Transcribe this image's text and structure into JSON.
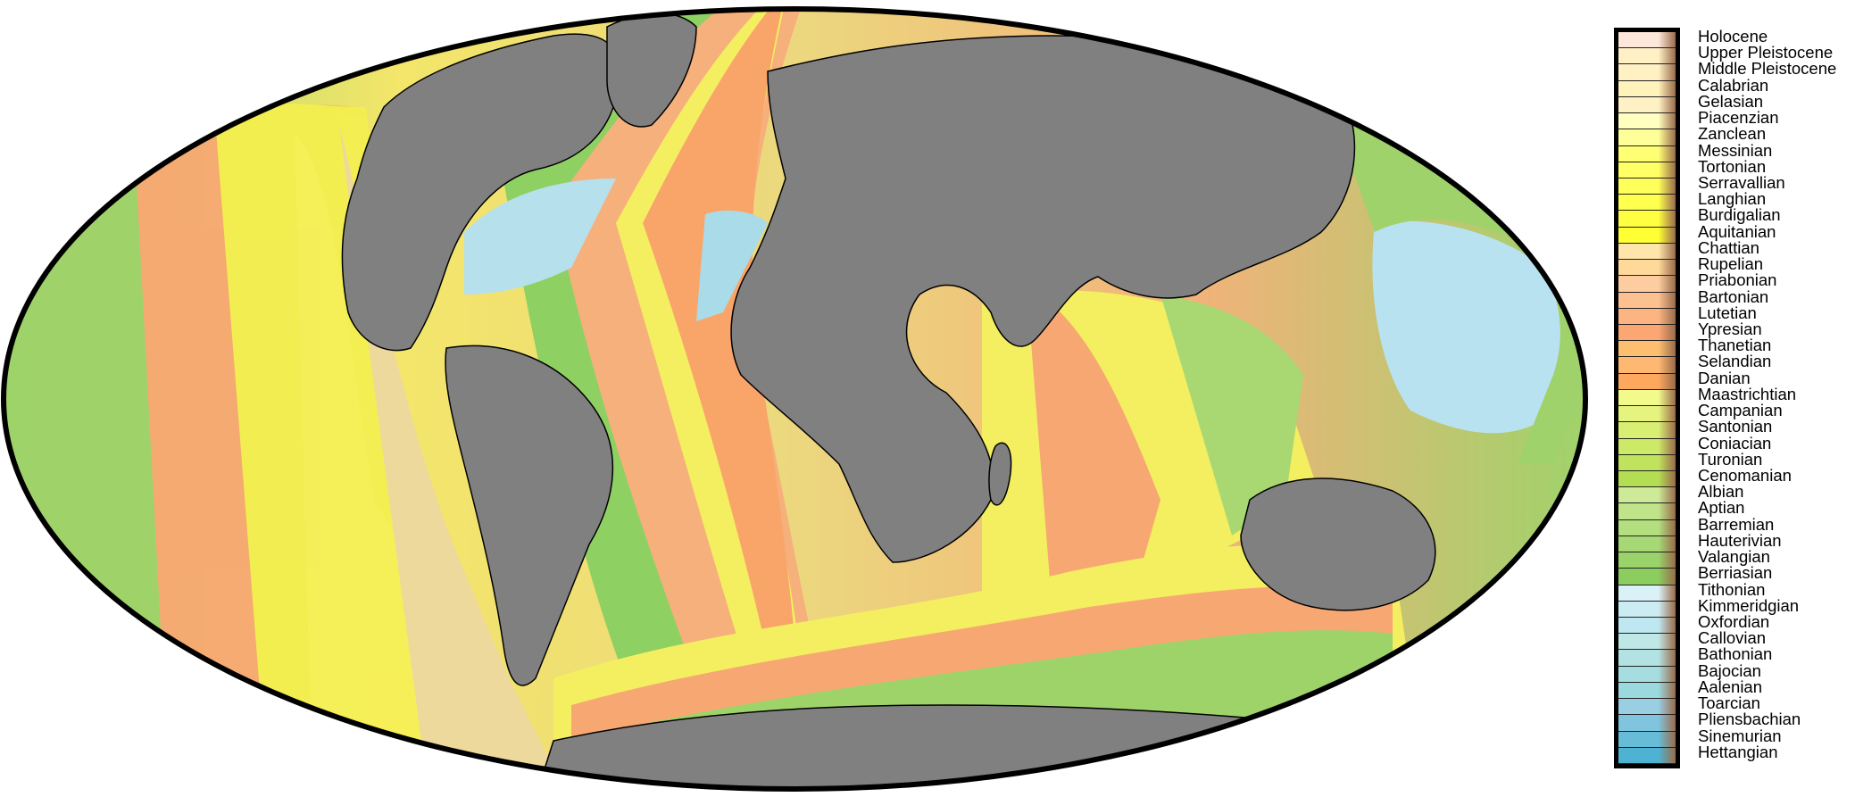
{
  "map": {
    "projection": "mollweide",
    "ocean_outline_color": "#000000",
    "land_color": "#808080",
    "coastline_color": "#000000"
  },
  "legend": {
    "stages": [
      {
        "name": "Holocene",
        "color": "#fde6da"
      },
      {
        "name": "Upper Pleistocene",
        "color": "#fff0c6"
      },
      {
        "name": "Middle Pleistocene",
        "color": "#fff1c4"
      },
      {
        "name": "Calabrian",
        "color": "#fff2ba"
      },
      {
        "name": "Gelasian",
        "color": "#fff1c6"
      },
      {
        "name": "Piacenzian",
        "color": "#ffffbf"
      },
      {
        "name": "Zanclean",
        "color": "#ffff99"
      },
      {
        "name": "Messinian",
        "color": "#ffff73"
      },
      {
        "name": "Tortonian",
        "color": "#ffff66"
      },
      {
        "name": "Serravallian",
        "color": "#ffff59"
      },
      {
        "name": "Langhian",
        "color": "#ffff4d"
      },
      {
        "name": "Burdigalian",
        "color": "#ffff41"
      },
      {
        "name": "Aquitanian",
        "color": "#ffff33"
      },
      {
        "name": "Chattian",
        "color": "#fee6aa"
      },
      {
        "name": "Rupelian",
        "color": "#fed99a"
      },
      {
        "name": "Priabonian",
        "color": "#fdcda1"
      },
      {
        "name": "Bartonian",
        "color": "#fdc091"
      },
      {
        "name": "Lutetian",
        "color": "#fcb482"
      },
      {
        "name": "Ypresian",
        "color": "#fca773"
      },
      {
        "name": "Thanetian",
        "color": "#fdbf6f"
      },
      {
        "name": "Selandian",
        "color": "#feb871"
      },
      {
        "name": "Danian",
        "color": "#fda75f"
      },
      {
        "name": "Maastrichtian",
        "color": "#f2fa8c"
      },
      {
        "name": "Campanian",
        "color": "#e6f47f"
      },
      {
        "name": "Santonian",
        "color": "#d9ef74"
      },
      {
        "name": "Coniacian",
        "color": "#cce968"
      },
      {
        "name": "Turonian",
        "color": "#bfe35d"
      },
      {
        "name": "Cenomanian",
        "color": "#b3de53"
      },
      {
        "name": "Albian",
        "color": "#ccea97"
      },
      {
        "name": "Aptian",
        "color": "#bfe48a"
      },
      {
        "name": "Barremian",
        "color": "#b3df7f"
      },
      {
        "name": "Hauterivian",
        "color": "#a6d975"
      },
      {
        "name": "Valangian",
        "color": "#99d36a"
      },
      {
        "name": "Berriasian",
        "color": "#8ccd60"
      },
      {
        "name": "Tithonian",
        "color": "#d9f1f7"
      },
      {
        "name": "Kimmeridgian",
        "color": "#ccecf4"
      },
      {
        "name": "Oxfordian",
        "color": "#bfe7f1"
      },
      {
        "name": "Callovian",
        "color": "#bfe7e5"
      },
      {
        "name": "Bathonian",
        "color": "#b3e2e3"
      },
      {
        "name": "Bajocian",
        "color": "#a6dde0"
      },
      {
        "name": "Aalenian",
        "color": "#9ad9dd"
      },
      {
        "name": "Toarcian",
        "color": "#99cee3"
      },
      {
        "name": "Pliensbachian",
        "color": "#80c5dd"
      },
      {
        "name": "Sinemurian",
        "color": "#67bcd8"
      },
      {
        "name": "Hettangian",
        "color": "#4eb3d3"
      }
    ]
  }
}
